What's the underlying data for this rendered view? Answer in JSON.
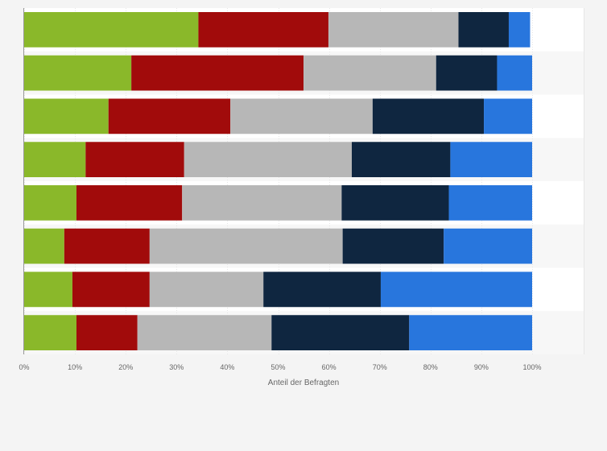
{
  "chart_data": {
    "type": "bar",
    "orientation": "horizontal",
    "stacked": true,
    "xlabel": "Anteil der Befragten",
    "xlim": [
      0,
      100
    ],
    "x_ticks": [
      "0%",
      "10%",
      "20%",
      "30%",
      "40%",
      "50%",
      "60%",
      "70%",
      "80%",
      "90%",
      "100%"
    ],
    "grid": true,
    "legend": "none",
    "colors": [
      "#8ab82a",
      "#a10b0b",
      "#b7b7b7",
      "#0f2640",
      "#2876dd"
    ],
    "series": [
      {
        "values": [
          34.3,
          21.1,
          16.6,
          12.1,
          10.3,
          7.9,
          9.5,
          10.3
        ]
      },
      {
        "values": [
          25.6,
          33.9,
          24.0,
          19.4,
          20.8,
          16.8,
          15.2,
          12.0
        ]
      },
      {
        "values": [
          25.6,
          26.1,
          28.0,
          33.0,
          31.4,
          38.0,
          22.4,
          26.4
        ]
      },
      {
        "values": [
          9.9,
          12.0,
          21.9,
          19.4,
          21.1,
          19.9,
          23.1,
          27.1
        ]
      },
      {
        "values": [
          4.2,
          6.9,
          9.5,
          16.1,
          16.4,
          17.4,
          29.8,
          24.2
        ]
      }
    ]
  }
}
